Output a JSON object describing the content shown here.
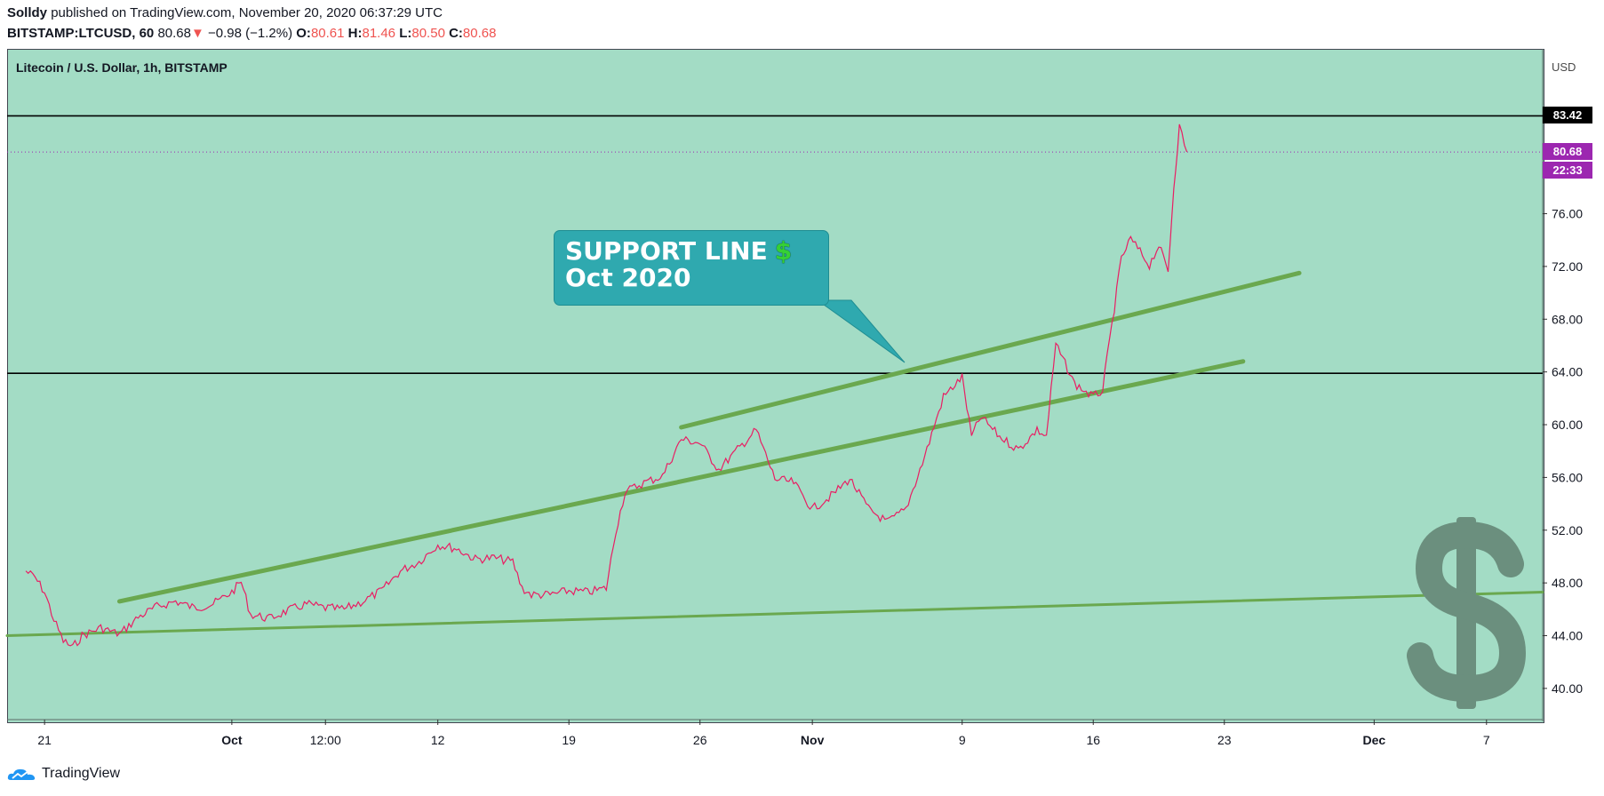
{
  "header": {
    "author": "Solldy",
    "published": "published on TradingView.com, November 20, 2020 06:37:29 UTC",
    "symbol": "BITSTAMP:LTCUSD, 60",
    "last": "80.68",
    "arrow": "▼",
    "change": "−0.98 (−1.2%)",
    "o_label": "O:",
    "o_value": "80.61",
    "h_label": "H:",
    "h_value": "81.46",
    "l_label": "L:",
    "l_value": "80.50",
    "c_label": "C:",
    "c_value": "80.68"
  },
  "legend_title": "Litecoin / U.S. Dollar, 1h, BITSTAMP",
  "axis": {
    "currency": "USD"
  },
  "price_tags": {
    "resistance": "83.42",
    "last": "80.68",
    "countdown": "22:33"
  },
  "callout": {
    "line1": "SUPPORT LINE",
    "line2": "Oct 2020",
    "icon": "$"
  },
  "footer": {
    "brand": "TradingView"
  },
  "colors": {
    "panel_bg": "#a3dcc5",
    "candle": "#e91e63",
    "trendline": "#6aa84f",
    "callout": "#2fa9af",
    "last_price": "#9c27b0"
  },
  "chart_data": {
    "type": "line",
    "xlim": [
      "2020-09-19",
      "2020-12-10"
    ],
    "ylim": [
      37.5,
      88.5
    ],
    "y_ticks": [
      40,
      44,
      48,
      52,
      56,
      60,
      64,
      68,
      72,
      76
    ],
    "x_ticks": [
      {
        "date": "2020-09-21",
        "label": "21"
      },
      {
        "date": "2020-10-01",
        "label": "Oct"
      },
      {
        "date": "2020-10-06",
        "label": "12:00"
      },
      {
        "date": "2020-10-12",
        "label": "12"
      },
      {
        "date": "2020-10-19",
        "label": "19"
      },
      {
        "date": "2020-10-26",
        "label": "26"
      },
      {
        "date": "2020-11-01",
        "label": "Nov"
      },
      {
        "date": "2020-11-09",
        "label": "9"
      },
      {
        "date": "2020-11-16",
        "label": "16"
      },
      {
        "date": "2020-11-23",
        "label": "23"
      },
      {
        "date": "2020-12-01",
        "label": "Dec"
      },
      {
        "date": "2020-12-07",
        "label": "7"
      }
    ],
    "series": [
      {
        "values": [
          [
            "2020-09-20",
            48.9
          ],
          [
            "2020-09-20.5",
            48.4
          ],
          [
            "2020-09-21",
            47.3
          ],
          [
            "2020-09-21.5",
            45.2
          ],
          [
            "2020-09-22",
            43.6
          ],
          [
            "2020-09-22.5",
            43.1
          ],
          [
            "2020-09-23",
            44.0
          ],
          [
            "2020-09-24",
            44.6
          ],
          [
            "2020-09-25",
            44.1
          ],
          [
            "2020-09-26",
            45.4
          ],
          [
            "2020-09-27",
            46.2
          ],
          [
            "2020-09-28",
            46.6
          ],
          [
            "2020-09-29",
            46.1
          ],
          [
            "2020-09-30",
            46.4
          ],
          [
            "2020-10-01",
            47.3
          ],
          [
            "2020-10-01.5",
            48.1
          ],
          [
            "2020-10-02",
            45.6
          ],
          [
            "2020-10-03",
            45.3
          ],
          [
            "2020-10-04",
            45.9
          ],
          [
            "2020-10-05",
            46.4
          ],
          [
            "2020-10-06",
            46.1
          ],
          [
            "2020-10-07",
            46.0
          ],
          [
            "2020-10-08",
            46.6
          ],
          [
            "2020-10-09",
            47.4
          ],
          [
            "2020-10-10",
            48.9
          ],
          [
            "2020-10-11",
            49.6
          ],
          [
            "2020-10-12",
            50.9
          ],
          [
            "2020-10-13",
            50.6
          ],
          [
            "2020-10-14",
            49.8
          ],
          [
            "2020-10-15",
            49.9
          ],
          [
            "2020-10-16",
            49.6
          ],
          [
            "2020-10-16.5",
            47.6
          ],
          [
            "2020-10-17",
            47.1
          ],
          [
            "2020-10-18",
            47.1
          ],
          [
            "2020-10-19",
            47.4
          ],
          [
            "2020-10-20",
            47.3
          ],
          [
            "2020-10-21",
            47.6
          ],
          [
            "2020-10-21.5",
            51.9
          ],
          [
            "2020-10-22",
            54.9
          ],
          [
            "2020-10-23",
            55.6
          ],
          [
            "2020-10-24",
            56.1
          ],
          [
            "2020-10-25",
            58.9
          ],
          [
            "2020-10-26",
            58.6
          ],
          [
            "2020-10-27",
            56.6
          ],
          [
            "2020-10-28",
            58.1
          ],
          [
            "2020-10-29",
            59.6
          ],
          [
            "2020-10-30",
            55.9
          ],
          [
            "2020-10-31",
            55.6
          ],
          [
            "2020-11-01",
            53.6
          ],
          [
            "2020-11-02",
            54.6
          ],
          [
            "2020-11-03",
            55.9
          ],
          [
            "2020-11-04",
            53.6
          ],
          [
            "2020-11-05",
            52.6
          ],
          [
            "2020-11-06",
            53.6
          ],
          [
            "2020-11-07",
            57.6
          ],
          [
            "2020-11-08",
            62.1
          ],
          [
            "2020-11-09",
            63.6
          ],
          [
            "2020-11-09.5",
            59.1
          ],
          [
            "2020-11-10",
            60.6
          ],
          [
            "2020-11-11",
            59.1
          ],
          [
            "2020-11-12",
            58.1
          ],
          [
            "2020-11-13",
            59.6
          ],
          [
            "2020-11-13.5",
            59.1
          ],
          [
            "2020-11-14",
            66.1
          ],
          [
            "2020-11-15",
            63.1
          ],
          [
            "2020-11-16",
            62.1
          ],
          [
            "2020-11-16.5",
            62.6
          ],
          [
            "2020-11-17",
            67.6
          ],
          [
            "2020-11-17.5",
            72.6
          ],
          [
            "2020-11-18",
            74.1
          ],
          [
            "2020-11-19",
            72.1
          ],
          [
            "2020-11-19.5",
            73.6
          ],
          [
            "2020-11-20",
            71.6
          ],
          [
            "2020-11-20.3",
            78.1
          ],
          [
            "2020-11-20.6",
            82.6
          ],
          [
            "2020-11-21",
            80.68
          ]
        ]
      }
    ],
    "horizontal_lines": [
      83.42,
      63.9
    ],
    "last_price": 80.68,
    "trendlines": [
      {
        "from": [
          "2020-09-19",
          44.0
        ],
        "to": [
          "2020-12-10",
          47.3
        ]
      },
      {
        "from": [
          "2020-09-25",
          46.6
        ],
        "to": [
          "2020-11-24",
          64.8
        ]
      },
      {
        "from": [
          "2020-10-25",
          59.8
        ],
        "to": [
          "2020-11-27",
          71.5
        ]
      }
    ]
  }
}
